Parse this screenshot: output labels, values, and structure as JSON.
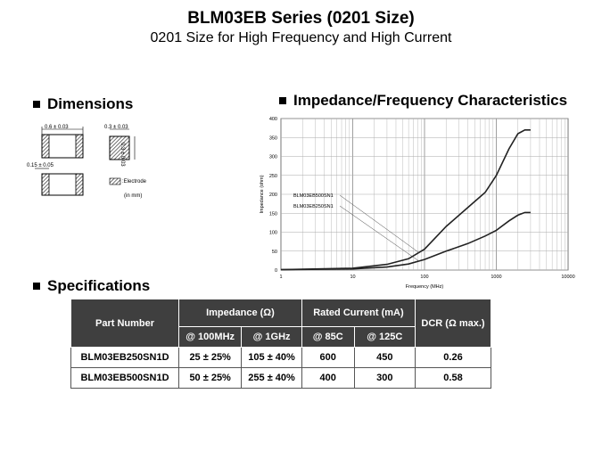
{
  "header": {
    "title": "BLM03EB Series (0201 Size)",
    "subtitle": "0201 Size for High Frequency and High Current"
  },
  "dimensions": {
    "heading": "Dimensions",
    "dim_width": "0.6 ± 0.03",
    "dim_depth": "0.3 ± 0.03",
    "dim_height": "0.3 ± 0.03",
    "dim_electrode": "0.15 ± 0.05",
    "legend_electrode": ":Electrode",
    "unit_note": "(in mm)"
  },
  "impedance_chart": {
    "heading": "Impedance/Frequency Characteristics"
  },
  "chart_data": {
    "type": "line",
    "xlabel": "Frequency (MHz)",
    "ylabel": "Impedance (ohm)",
    "x_scale": "log",
    "xlim": [
      1,
      10000
    ],
    "ylim": [
      0,
      400
    ],
    "x_ticks": [
      "1",
      "10",
      "100",
      "1000",
      "10000"
    ],
    "y_ticks": [
      "0",
      "50",
      "100",
      "150",
      "200",
      "250",
      "300",
      "350",
      "400"
    ],
    "grid": true,
    "series": [
      {
        "name": "BLM03EB500SN1",
        "x": [
          1,
          10,
          30,
          60,
          100,
          200,
          400,
          700,
          1000,
          1500,
          2000,
          2500,
          3000
        ],
        "y": [
          1,
          5,
          15,
          30,
          55,
          115,
          165,
          205,
          250,
          320,
          360,
          370,
          370
        ]
      },
      {
        "name": "BLM03EB250SN1",
        "x": [
          1,
          10,
          30,
          60,
          100,
          200,
          400,
          700,
          1000,
          1500,
          2000,
          2500,
          3000
        ],
        "y": [
          1,
          3,
          8,
          16,
          28,
          50,
          70,
          90,
          105,
          130,
          145,
          152,
          152
        ]
      }
    ]
  },
  "specifications": {
    "heading": "Specifications",
    "headers": {
      "part_number": "Part Number",
      "impedance": "Impedance (Ω)",
      "rated_current": "Rated Current (mA)",
      "dcr": "DCR (Ω max.)",
      "sub": [
        "@ 100MHz",
        "@ 1GHz",
        "@ 85C",
        "@ 125C"
      ]
    },
    "rows": [
      [
        "BLM03EB250SN1D",
        "25 ± 25%",
        "105 ± 40%",
        "600",
        "450",
        "0.26"
      ],
      [
        "BLM03EB500SN1D",
        "50 ± 25%",
        "255 ± 40%",
        "400",
        "300",
        "0.58"
      ]
    ]
  }
}
